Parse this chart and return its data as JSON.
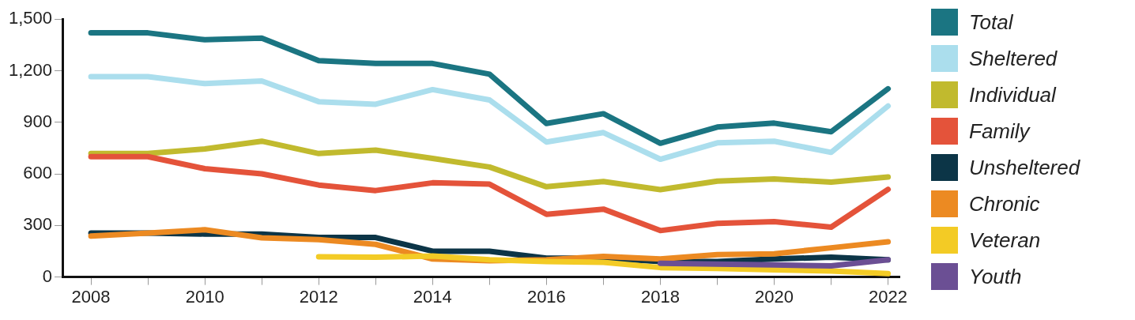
{
  "chart_data": {
    "type": "line",
    "x": [
      2008,
      2009,
      2010,
      2011,
      2012,
      2013,
      2014,
      2015,
      2016,
      2017,
      2018,
      2019,
      2020,
      2021,
      2022
    ],
    "xlim": [
      2007.5,
      2022.2
    ],
    "xticks": [
      2008,
      {
        "value": 2009,
        "label": null
      },
      2010,
      {
        "value": 2011,
        "label": null
      },
      2012,
      {
        "value": 2013,
        "label": null
      },
      2014,
      {
        "value": 2015,
        "label": null
      },
      2016,
      {
        "value": 2017,
        "label": null
      },
      2018,
      {
        "value": 2019,
        "label": null
      },
      2020,
      {
        "value": 2021,
        "label": null
      },
      2022
    ],
    "ylim": [
      0,
      1500
    ],
    "yticks": [
      0,
      300,
      600,
      900,
      {
        "value": 1200,
        "label": "1,200"
      },
      {
        "value": 1500,
        "label": "1,500"
      }
    ],
    "grid": false,
    "legend": "right",
    "marker": "none",
    "line_style": "solid",
    "series": [
      {
        "name": "Total",
        "color": "#1b7582",
        "values": [
          1420,
          1420,
          1380,
          1390,
          1258,
          1242,
          1242,
          1180,
          893,
          950,
          778,
          872,
          895,
          845,
          1095
        ]
      },
      {
        "name": "Sheltered",
        "color": "#abdeed",
        "values": [
          1165,
          1165,
          1125,
          1140,
          1020,
          1005,
          1090,
          1030,
          785,
          840,
          685,
          780,
          790,
          725,
          995
        ]
      },
      {
        "name": "Individual",
        "color": "#c1ba2e",
        "values": [
          718,
          718,
          745,
          790,
          718,
          738,
          690,
          640,
          525,
          555,
          508,
          558,
          570,
          552,
          582
        ]
      },
      {
        "name": "Family",
        "color": "#e4533a",
        "values": [
          700,
          700,
          630,
          600,
          535,
          503,
          548,
          540,
          365,
          395,
          270,
          312,
          322,
          290,
          510
        ]
      },
      {
        "name": "Unsheltered",
        "color": "#0c3547",
        "values": [
          255,
          255,
          250,
          250,
          230,
          230,
          150,
          150,
          110,
          110,
          90,
          90,
          105,
          115,
          100
        ]
      },
      {
        "name": "Chronic",
        "color": "#ec8a22",
        "values": [
          238,
          255,
          275,
          228,
          218,
          190,
          105,
          95,
          100,
          120,
          105,
          130,
          135,
          170,
          205
        ]
      },
      {
        "name": "Veteran",
        "color": "#f3cb25",
        "values": [
          null,
          null,
          null,
          null,
          118,
          115,
          122,
          100,
          90,
          85,
          55,
          50,
          42,
          35,
          20
        ]
      },
      {
        "name": "Youth",
        "color": "#6b4f94",
        "values": [
          null,
          null,
          null,
          null,
          null,
          null,
          null,
          null,
          null,
          null,
          80,
          75,
          70,
          65,
          100
        ]
      }
    ]
  }
}
